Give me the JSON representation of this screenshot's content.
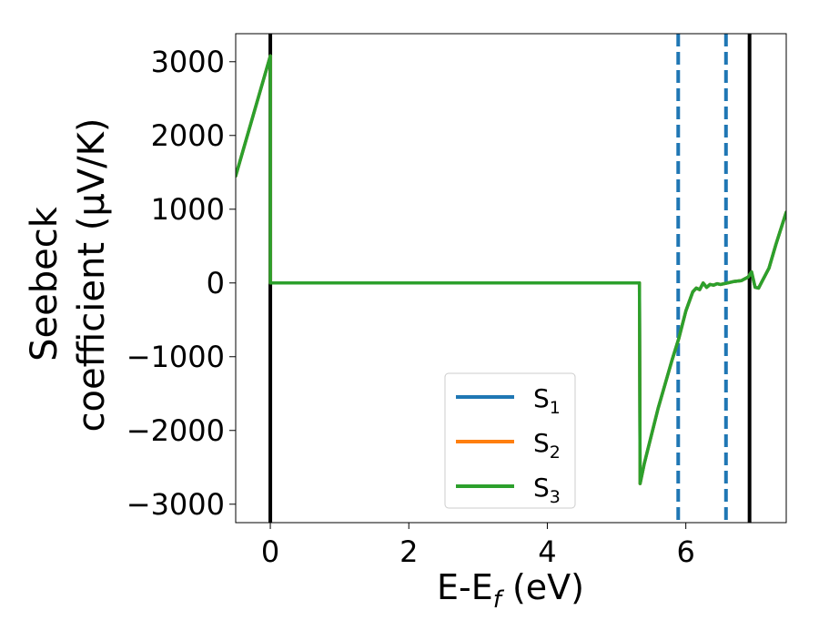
{
  "chart_data": {
    "type": "line",
    "xlabel_main": "E-E",
    "xlabel_sub": "f",
    "xlabel_unit": " (eV)",
    "ylabel_line1": "Seebeck",
    "ylabel_line2": "coefficient  (μV/K)",
    "xlim": [
      -0.5,
      7.45
    ],
    "ylim": [
      -3250,
      3380
    ],
    "xticks": [
      0,
      2,
      4,
      6
    ],
    "xtick_labels": [
      "0",
      "2",
      "4",
      "6"
    ],
    "yticks": [
      3000,
      2000,
      1000,
      0,
      -1000,
      -2000,
      -3000
    ],
    "ytick_labels": [
      "3000",
      "2000",
      "1000",
      "0",
      "−1000",
      "−2000",
      "−3000"
    ],
    "grid": false,
    "legend_position": "lower-center",
    "vlines": [
      {
        "x": 0.0,
        "style": "solid",
        "color": "#000000"
      },
      {
        "x": 6.92,
        "style": "solid",
        "color": "#000000"
      },
      {
        "x": 5.89,
        "style": "dashed",
        "color": "#1f77b4"
      },
      {
        "x": 6.58,
        "style": "dashed",
        "color": "#1f77b4"
      }
    ],
    "series": [
      {
        "name": "S",
        "sub": "1",
        "color": "#1f77b4",
        "x": [
          -0.5,
          0.0,
          0.0,
          5.33,
          5.34,
          5.4,
          5.6,
          5.8,
          5.9,
          6.0,
          6.1,
          6.15,
          6.2,
          6.25,
          6.3,
          6.35,
          6.4,
          6.45,
          6.5,
          6.6,
          6.7,
          6.8,
          6.9,
          6.95,
          7.0,
          7.05,
          7.1,
          7.2,
          7.3,
          7.45
        ],
        "y": [
          1450,
          3080,
          0,
          0,
          -2720,
          -2450,
          -1700,
          -1050,
          -750,
          -380,
          -120,
          -70,
          -90,
          0,
          -60,
          -20,
          -30,
          -10,
          -20,
          0,
          20,
          30,
          80,
          150,
          -60,
          -70,
          20,
          200,
          520,
          960
        ]
      },
      {
        "name": "S",
        "sub": "2",
        "color": "#ff7f0e",
        "x": [
          -0.5,
          0.0,
          0.0,
          5.33,
          5.34,
          5.4,
          5.6,
          5.8,
          5.9,
          6.0,
          6.1,
          6.15,
          6.2,
          6.25,
          6.3,
          6.35,
          6.4,
          6.45,
          6.5,
          6.6,
          6.7,
          6.8,
          6.9,
          6.95,
          7.0,
          7.05,
          7.1,
          7.2,
          7.3,
          7.45
        ],
        "y": [
          1450,
          3080,
          0,
          0,
          -2720,
          -2450,
          -1700,
          -1050,
          -750,
          -380,
          -120,
          -70,
          -90,
          0,
          -60,
          -20,
          -30,
          -10,
          -20,
          0,
          20,
          30,
          80,
          150,
          -60,
          -70,
          20,
          200,
          520,
          960
        ]
      },
      {
        "name": "S",
        "sub": "3",
        "color": "#2ca02c",
        "x": [
          -0.5,
          0.0,
          0.0,
          5.33,
          5.34,
          5.4,
          5.6,
          5.8,
          5.9,
          6.0,
          6.1,
          6.15,
          6.2,
          6.25,
          6.3,
          6.35,
          6.4,
          6.45,
          6.5,
          6.6,
          6.7,
          6.8,
          6.9,
          6.95,
          7.0,
          7.05,
          7.1,
          7.2,
          7.3,
          7.45
        ],
        "y": [
          1450,
          3080,
          0,
          0,
          -2720,
          -2450,
          -1700,
          -1050,
          -750,
          -380,
          -120,
          -70,
          -90,
          0,
          -60,
          -20,
          -30,
          -10,
          -20,
          0,
          20,
          30,
          80,
          150,
          -60,
          -70,
          20,
          200,
          520,
          960
        ]
      }
    ]
  }
}
